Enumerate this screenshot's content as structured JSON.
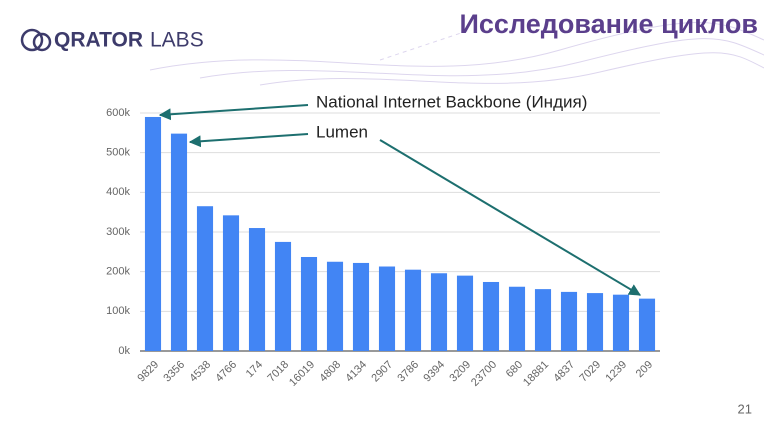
{
  "header": {
    "logo_main": "QRATOR",
    "logo_sub": "LABS",
    "title": "Исследование циклов"
  },
  "page_number": 21,
  "chart_data": {
    "type": "bar",
    "annotations": [
      "National Internet Backbone (Индия)",
      "Lumen"
    ],
    "categories": [
      "9829",
      "3356",
      "4538",
      "4766",
      "174",
      "7018",
      "16019",
      "4808",
      "4134",
      "2907",
      "3786",
      "9394",
      "3209",
      "23700",
      "680",
      "18881",
      "4837",
      "7029",
      "1239",
      "209"
    ],
    "values": [
      590000,
      548000,
      365000,
      342000,
      310000,
      275000,
      237000,
      225000,
      222000,
      213000,
      205000,
      196000,
      190000,
      174000,
      162000,
      156000,
      149000,
      146000,
      142000,
      132000
    ],
    "color": "#4285f4",
    "ylim": [
      0,
      600000
    ],
    "yticks": [
      {
        "value": 0,
        "label": "0k"
      },
      {
        "value": 100000,
        "label": "100k"
      },
      {
        "value": 200000,
        "label": "200k"
      },
      {
        "value": 300000,
        "label": "300k"
      },
      {
        "value": 400000,
        "label": "400k"
      },
      {
        "value": 500000,
        "label": "500k"
      },
      {
        "value": 600000,
        "label": "600k"
      }
    ],
    "grid": true
  }
}
